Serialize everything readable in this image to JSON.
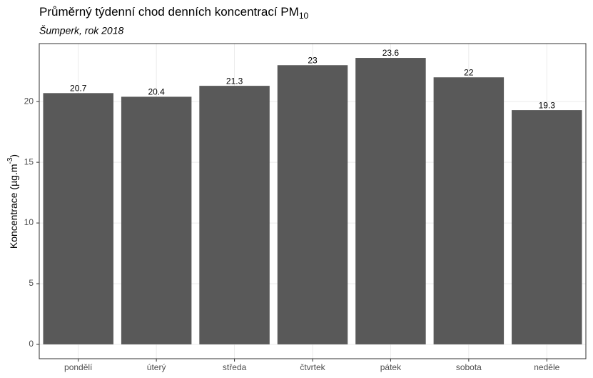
{
  "chart_data": {
    "type": "bar",
    "title": {
      "text": "Průměrný týdenní chod denních koncentrací PM",
      "subscript": "10"
    },
    "subtitle": "Šumperk, rok 2018",
    "y_label": {
      "text": "Koncentrace (µg.m",
      "superscript": "-3",
      "suffix": ")"
    },
    "categories": [
      "pondělí",
      "úterý",
      "středa",
      "čtvrtek",
      "pátek",
      "sobota",
      "neděle"
    ],
    "values": [
      20.7,
      20.4,
      21.3,
      23,
      23.6,
      22,
      19.3
    ],
    "color": "#595959",
    "ylim": [
      -1.18,
      24.78
    ],
    "yticks": [
      0,
      5,
      10,
      15,
      20
    ],
    "grid": true
  }
}
